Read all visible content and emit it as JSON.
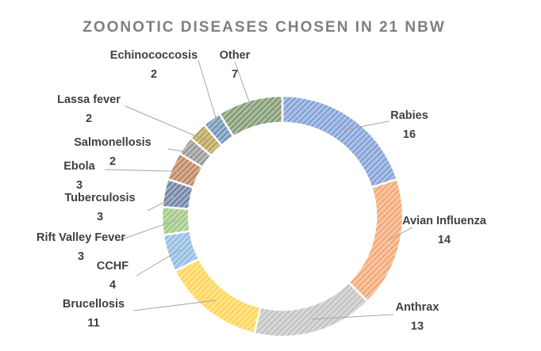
{
  "chart_data": {
    "type": "pie",
    "variant": "doughnut",
    "title": "ZOONOTIC DISEASES CHOSEN IN 21 NBW",
    "slices": [
      {
        "name": "Rabies",
        "value": 16,
        "color": "#4472c4"
      },
      {
        "name": "Avian Influenza",
        "value": 14,
        "color": "#ed7d31"
      },
      {
        "name": "Anthrax",
        "value": 13,
        "color": "#a5a5a5"
      },
      {
        "name": "Brucellosis",
        "value": 11,
        "color": "#ffc000"
      },
      {
        "name": "CCHF",
        "value": 4,
        "color": "#5b9bd5"
      },
      {
        "name": "Rift Valley Fever",
        "value": 3,
        "color": "#70ad47"
      },
      {
        "name": "Tuberculosis",
        "value": 3,
        "color": "#264478"
      },
      {
        "name": "Ebola",
        "value": 3,
        "color": "#9e480e"
      },
      {
        "name": "Salmonellosis",
        "value": 2,
        "color": "#636363"
      },
      {
        "name": "Lassa fever",
        "value": 2,
        "color": "#997300"
      },
      {
        "name": "Echinococcosis",
        "value": 2,
        "color": "#255e91"
      },
      {
        "name": "Other",
        "value": 7,
        "color": "#43682b"
      }
    ],
    "legend": "none",
    "pattern": "hatched"
  }
}
